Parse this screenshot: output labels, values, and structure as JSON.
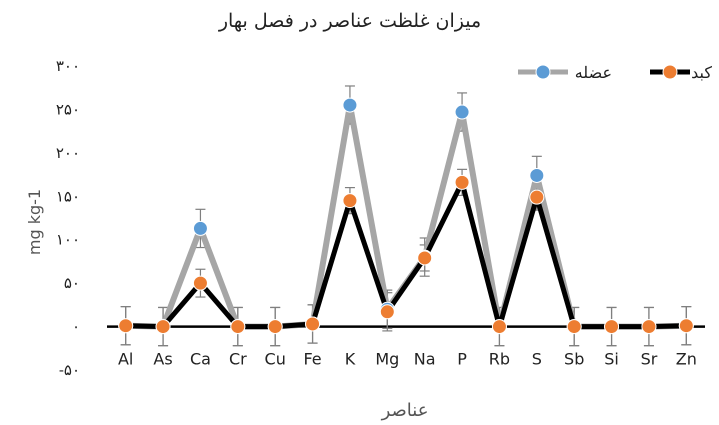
{
  "chart_data": {
    "type": "line",
    "title": "میزان غلظت عناصر در فصل بهار",
    "xlabel": "عناصر",
    "ylabel": "mg kg-1",
    "ylim": [
      -50,
      300
    ],
    "yticks": [
      -50,
      0,
      50,
      100,
      150,
      200,
      250,
      300
    ],
    "ytick_labels": [
      "-۵۰",
      "۰",
      "۵۰",
      "۱۰۰",
      "۱۵۰",
      "۲۰۰",
      "۲۵۰",
      "۳۰۰"
    ],
    "categories": [
      "Al",
      "As",
      "Ca",
      "Cr",
      "Cu",
      "Fe",
      "K",
      "Mg",
      "Na",
      "P",
      "Rb",
      "S",
      "Sb",
      "Si",
      "Sr",
      "Zn"
    ],
    "series": [
      {
        "name": "عضله",
        "line_color": "#a6a6a6",
        "marker_color": "#5b9bd5",
        "values": [
          1,
          0,
          113,
          0,
          0,
          3,
          255,
          20,
          80,
          247,
          0,
          174,
          0,
          0,
          0,
          1
        ],
        "error": [
          22,
          22,
          22,
          22,
          22,
          22,
          22,
          22,
          22,
          22,
          22,
          22,
          22,
          22,
          22,
          22
        ]
      },
      {
        "name": "کبد",
        "line_color": "#000000",
        "marker_color": "#ed7d31",
        "values": [
          1,
          0,
          50,
          0,
          0,
          3,
          145,
          17,
          79,
          166,
          0,
          149,
          0,
          0,
          0,
          1
        ],
        "error": [
          22,
          22,
          16,
          22,
          22,
          22,
          15,
          22,
          15,
          15,
          22,
          15,
          22,
          22,
          22,
          22
        ]
      }
    ],
    "legend_position": "top-right",
    "grid": false
  }
}
